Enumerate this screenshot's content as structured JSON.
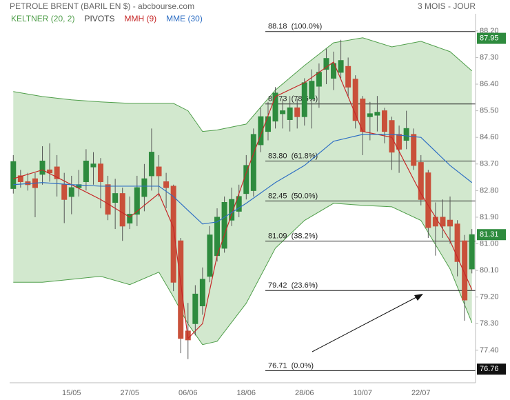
{
  "chart_data": {
    "type": "candlestick",
    "title": "PETROLE BRENT (BARIL EN $) - abcbourse.com",
    "period": "3 MOIS - JOUR",
    "categories": [
      null,
      null,
      null,
      null,
      null,
      null,
      null,
      null,
      "15/05",
      null,
      null,
      null,
      null,
      null,
      null,
      null,
      "27/05",
      null,
      null,
      null,
      null,
      null,
      null,
      null,
      "06/06",
      null,
      null,
      null,
      null,
      null,
      null,
      null,
      "18/06",
      null,
      null,
      null,
      null,
      null,
      null,
      null,
      "28/06",
      null,
      null,
      null,
      null,
      null,
      null,
      null,
      "10/07",
      null,
      null,
      null,
      null,
      null,
      null,
      null,
      "22/07",
      null,
      null,
      null,
      null,
      null,
      null,
      null
    ],
    "up_color": "#2e8b3e",
    "down_color": "#c9503a",
    "candles": {
      "open": [
        82.87,
        83.3,
        83.1,
        83.2,
        83.35,
        83.5,
        83.6,
        83.0,
        82.6,
        82.9,
        83.1,
        83.6,
        83.7,
        83.0,
        82.4,
        82.7,
        81.7,
        82.0,
        82.6,
        83.3,
        83.6,
        83.1,
        82.95,
        81.1,
        78.05,
        78.3,
        78.9,
        79.9,
        80.6,
        80.85,
        81.8,
        82.1,
        82.7,
        82.8,
        84.35,
        84.8,
        85.15,
        85.4,
        85.2,
        85.6,
        85.3,
        85.9,
        86.33,
        86.9,
        86.6,
        86.8,
        87.0,
        86.57,
        85.9,
        85.3,
        85.35,
        85.5,
        85.17,
        84.7,
        84.5,
        84.7,
        83.75,
        83.4,
        81.9,
        81.9,
        81.8,
        81.67,
        81.1,
        80.15
      ],
      "high": [
        84.0,
        83.5,
        83.4,
        83.4,
        84.3,
        84.4,
        84.0,
        83.4,
        83.3,
        83.5,
        84.2,
        84.1,
        83.9,
        83.3,
        83.2,
        82.9,
        82.6,
        83.3,
        83.7,
        84.9,
        84.0,
        83.4,
        83.0,
        81.2,
        79.0,
        79.6,
        80.2,
        81.6,
        82.2,
        82.6,
        82.9,
        83.0,
        84.0,
        84.9,
        85.6,
        85.8,
        86.3,
        85.9,
        86.0,
        85.9,
        86.6,
        86.9,
        87.1,
        87.6,
        87.5,
        87.9,
        87.3,
        86.7,
        86.0,
        85.8,
        86.0,
        85.6,
        85.3,
        85.0,
        85.5,
        84.9,
        84.0,
        83.5,
        82.4,
        82.5,
        82.6,
        81.8,
        81.3,
        81.5
      ],
      "low": [
        82.7,
        82.9,
        82.8,
        81.9,
        83.0,
        83.1,
        82.6,
        81.7,
        82.0,
        82.6,
        82.8,
        83.0,
        82.2,
        81.8,
        81.5,
        81.1,
        81.5,
        81.6,
        82.1,
        82.8,
        82.6,
        82.2,
        79.4,
        77.3,
        77.1,
        77.9,
        78.6,
        79.7,
        80.4,
        80.7,
        81.6,
        81.9,
        82.5,
        82.6,
        84.1,
        84.5,
        84.9,
        84.9,
        84.8,
        84.9,
        85.0,
        84.9,
        85.6,
        86.4,
        86.2,
        86.6,
        86.0,
        84.9,
        84.0,
        84.5,
        84.8,
        84.4,
        83.5,
        83.4,
        84.2,
        83.5,
        82.3,
        81.2,
        80.6,
        81.2,
        81.0,
        79.9,
        78.4,
        80.0
      ],
      "close": [
        83.78,
        83.1,
        83.0,
        82.9,
        83.8,
        83.4,
        83.2,
        82.5,
        82.9,
        83.0,
        83.8,
        83.7,
        83.1,
        82.0,
        82.7,
        81.6,
        82.0,
        82.9,
        83.2,
        84.1,
        83.3,
        82.9,
        79.7,
        77.8,
        77.75,
        79.3,
        79.8,
        81.3,
        81.9,
        82.4,
        82.5,
        82.6,
        83.65,
        84.7,
        85.3,
        85.3,
        86.1,
        85.5,
        85.6,
        85.3,
        86.45,
        86.5,
        86.8,
        87.27,
        87.1,
        87.2,
        86.3,
        85.17,
        84.8,
        85.4,
        85.45,
        84.8,
        84.1,
        84.2,
        84.9,
        83.65,
        82.5,
        81.55,
        81.6,
        81.6,
        81.6,
        80.4,
        79.1,
        81.31
      ]
    },
    "series": [
      {
        "name": "KELTNER (20, 2)",
        "color": "#4f9e4a",
        "x": [
          0,
          4,
          8,
          12,
          16,
          20,
          22,
          24,
          26,
          28,
          32,
          36,
          40,
          44,
          48,
          52,
          56,
          60,
          63
        ],
        "upper": [
          86.15,
          85.98,
          85.87,
          85.8,
          85.75,
          85.75,
          85.75,
          85.5,
          84.8,
          84.85,
          85.05,
          86.2,
          87.03,
          87.8,
          87.97,
          87.66,
          87.85,
          87.5,
          86.85
        ],
        "lower": [
          79.7,
          79.7,
          79.8,
          79.9,
          79.62,
          80.04,
          79.2,
          78.29,
          77.59,
          77.7,
          78.99,
          80.85,
          81.79,
          82.37,
          82.3,
          82.25,
          81.79,
          80.15,
          78.33
        ]
      },
      {
        "name": "PIVOTS",
        "color": "#444444"
      },
      {
        "name": "MMH (9)",
        "color": "#c62828",
        "x": [
          0,
          4,
          8,
          12,
          16,
          20,
          22,
          24,
          26,
          28,
          32,
          36,
          40,
          44,
          48,
          52,
          56,
          60,
          63
        ],
        "values": [
          83.2,
          83.5,
          83.0,
          82.5,
          81.9,
          82.7,
          81.55,
          77.8,
          78.3,
          80.6,
          83.4,
          85.98,
          86.45,
          87.15,
          84.8,
          84.6,
          82.7,
          81.1,
          79.45
        ]
      },
      {
        "name": "MME (30)",
        "color": "#2f6fc4",
        "x": [
          0,
          4,
          8,
          12,
          16,
          20,
          22,
          24,
          26,
          28,
          32,
          36,
          40,
          44,
          48,
          52,
          56,
          60,
          63
        ],
        "values": [
          83.0,
          83.07,
          83.0,
          82.95,
          82.95,
          82.95,
          82.6,
          82.13,
          81.67,
          81.74,
          82.37,
          83.07,
          83.65,
          84.47,
          84.7,
          84.7,
          84.6,
          83.65,
          83.07
        ]
      }
    ],
    "ylim": [
      76.3,
      88.78
    ],
    "yticks": [
      {
        "value": 88.2,
        "label": "88.20"
      },
      {
        "value": 87.3,
        "label": "87.30"
      },
      {
        "value": 86.4,
        "label": "86.40"
      },
      {
        "value": 85.5,
        "label": "85.50"
      },
      {
        "value": 84.6,
        "label": "84.60"
      },
      {
        "value": 83.7,
        "label": "83.70"
      },
      {
        "value": 82.8,
        "label": "82.80"
      },
      {
        "value": 81.9,
        "label": "81.90"
      },
      {
        "value": 81,
        "label": "81.00"
      },
      {
        "value": 80.1,
        "label": "80.10"
      },
      {
        "value": 79.2,
        "label": "79.20"
      },
      {
        "value": 78.3,
        "label": "78.30"
      },
      {
        "value": 77.4,
        "label": "77.40"
      }
    ],
    "fib_levels": [
      {
        "value": 88.18,
        "label": "88.18  (100.0%)"
      },
      {
        "value": 85.73,
        "label": "85.73  (78.6%)"
      },
      {
        "value": 83.8,
        "label": "83.80  (61.8%)"
      },
      {
        "value": 82.45,
        "label": "82.45  (50.0%)"
      },
      {
        "value": 81.09,
        "label": "81.09  (38.2%)"
      },
      {
        "value": 79.42,
        "label": "79.42  (23.6%)"
      },
      {
        "value": 76.71,
        "label": "76.71  (0.0%)"
      }
    ],
    "price_markers": [
      {
        "value": 87.95,
        "color": "#2e8b3e"
      },
      {
        "value": 81.31,
        "color": "#2e8b3e"
      },
      {
        "value": 76.76,
        "color": "#111111"
      }
    ]
  }
}
